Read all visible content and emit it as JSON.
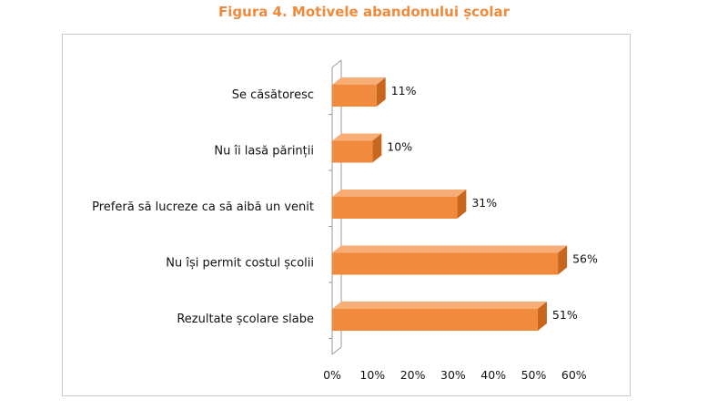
{
  "figure": {
    "title": "Figura 4. Motivele abandonului școlar"
  },
  "chart_data": {
    "type": "bar",
    "orientation": "horizontal",
    "style": "3d",
    "title": "Figura 4. Motivele abandonului școlar",
    "categories": [
      "Se căsătoresc",
      "Nu îi lasă părinții",
      "Preferă să lucreze ca să aibă un venit",
      "Nu își permit costul școlii",
      "Rezultate școlare slabe"
    ],
    "values": [
      11,
      10,
      31,
      56,
      51
    ],
    "value_labels": [
      "11%",
      "10%",
      "31%",
      "56%",
      "51%"
    ],
    "xlim": [
      0,
      60
    ],
    "x_ticks": [
      "0%",
      "10%",
      "20%",
      "30%",
      "40%",
      "50%",
      "60%"
    ],
    "grid": false,
    "legend": false,
    "colors": {
      "bar_front": "#f28a3d",
      "bar_top": "#f7ae76",
      "bar_side": "#c8661e",
      "axis": "#9a9a9a",
      "title": "#ef8a3c"
    }
  }
}
